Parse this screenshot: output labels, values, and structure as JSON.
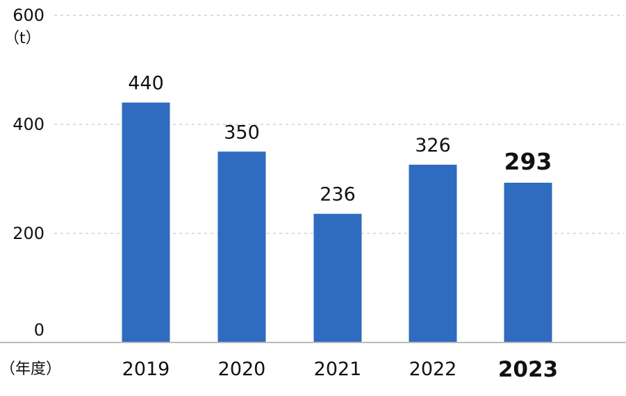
{
  "chart_data": {
    "type": "bar",
    "categories": [
      "2019",
      "2020",
      "2021",
      "2022",
      "2023"
    ],
    "values": [
      440,
      350,
      236,
      326,
      293
    ],
    "value_labels": [
      "440",
      "350",
      "236",
      "326",
      "293"
    ],
    "highlight_index": 4,
    "title": "",
    "ylabel": "（t）",
    "xlabel": "（年度）",
    "ylim": [
      0,
      600
    ],
    "yticks": [
      0,
      200,
      400,
      600
    ],
    "grid": true,
    "colors": {
      "bar": "#2f6bbf",
      "highlight_label": "#2f6bbf",
      "grid": "#c8c8c8",
      "axis": "#bbbbbb"
    }
  }
}
